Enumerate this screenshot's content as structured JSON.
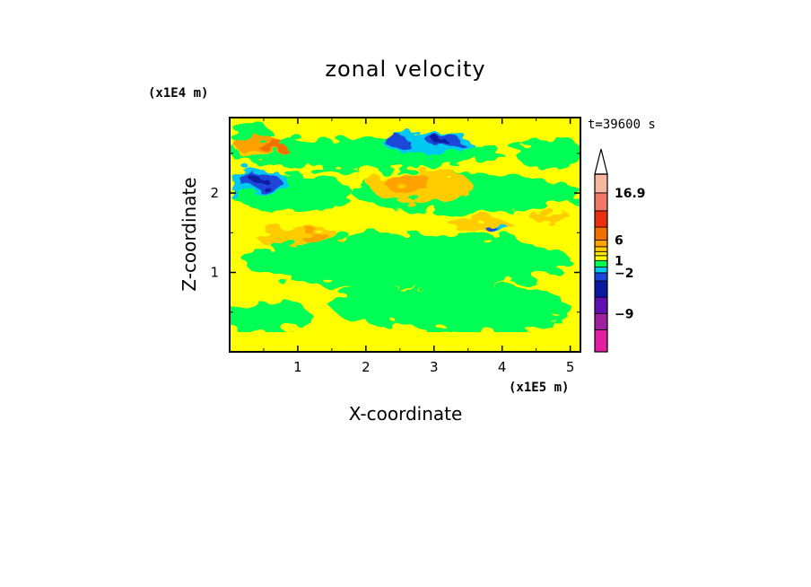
{
  "chart_data": {
    "type": "heatmap",
    "title": "zonal velocity",
    "xlabel": "X-coordinate",
    "ylabel": "Z-coordinate",
    "x_scale_label": "(x1E5 m)",
    "y_scale_label": "(x1E4 m)",
    "time_label": "t=39600 s",
    "xlim": [
      0,
      5.15
    ],
    "ylim": [
      0,
      2.95
    ],
    "x_ticks": [
      "1",
      "2",
      "3",
      "4",
      "5"
    ],
    "y_ticks": [
      "1",
      "2"
    ],
    "colorbar": {
      "labels": [
        "16.9",
        "6",
        "1",
        "−2",
        "−9"
      ],
      "levels": [
        {
          "color": "#e020a0"
        },
        {
          "color": "#a020a0"
        },
        {
          "color": "#6010b0"
        },
        {
          "color": "#0a1aa0"
        },
        {
          "color": "#1a46d8"
        },
        {
          "color": "#00c8f0"
        },
        {
          "color": "#00ff55"
        },
        {
          "color": "#ffff00"
        },
        {
          "color": "#ffe600"
        },
        {
          "color": "#ffcc00"
        },
        {
          "color": "#ffa200"
        },
        {
          "color": "#f07000"
        },
        {
          "color": "#e83010"
        },
        {
          "color": "#f07868"
        },
        {
          "color": "#f8b8a0"
        }
      ]
    },
    "field": {
      "background_color": "#ffff00",
      "regions": [
        {
          "color": "#00ff55",
          "cx": 2.6,
          "cz": 1.15,
          "rx": 2.4,
          "rz": 0.35
        },
        {
          "color": "#00ff55",
          "cx": 3.6,
          "cz": 0.55,
          "rx": 1.4,
          "rz": 0.3
        },
        {
          "color": "#00ff55",
          "cx": 0.5,
          "cz": 0.45,
          "rx": 0.7,
          "rz": 0.2
        },
        {
          "color": "#00ff55",
          "cx": 2.1,
          "cz": 0.6,
          "rx": 0.6,
          "rz": 0.25
        },
        {
          "color": "#00ff55",
          "cx": 0.9,
          "cz": 2.0,
          "rx": 0.9,
          "rz": 0.25
        },
        {
          "color": "#00ff55",
          "cx": 3.5,
          "cz": 2.0,
          "rx": 1.7,
          "rz": 0.25
        },
        {
          "color": "#00ff55",
          "cx": 2.0,
          "cz": 2.5,
          "rx": 2.0,
          "rz": 0.2
        },
        {
          "color": "#00ff55",
          "cx": 4.7,
          "cz": 2.5,
          "rx": 0.5,
          "rz": 0.2
        },
        {
          "color": "#00ff55",
          "cx": 0.3,
          "cz": 2.75,
          "rx": 0.3,
          "rz": 0.15
        },
        {
          "color": "#ffcc00",
          "cx": 0.85,
          "cz": 1.45,
          "rx": 0.45,
          "rz": 0.12
        },
        {
          "color": "#ffcc00",
          "cx": 1.3,
          "cz": 1.47,
          "rx": 0.3,
          "rz": 0.1
        },
        {
          "color": "#ffcc00",
          "cx": 0.4,
          "cz": 2.55,
          "rx": 0.3,
          "rz": 0.12
        },
        {
          "color": "#ffcc00",
          "cx": 2.8,
          "cz": 2.1,
          "rx": 0.75,
          "rz": 0.2
        },
        {
          "color": "#ffcc00",
          "cx": 3.7,
          "cz": 1.6,
          "rx": 0.45,
          "rz": 0.1
        },
        {
          "color": "#ffcc00",
          "cx": 4.7,
          "cz": 1.7,
          "rx": 0.3,
          "rz": 0.08
        },
        {
          "color": "#ffa200",
          "cx": 0.45,
          "cz": 2.6,
          "rx": 0.35,
          "rz": 0.12
        },
        {
          "color": "#ffa200",
          "cx": 2.6,
          "cz": 2.15,
          "rx": 0.35,
          "rz": 0.12
        },
        {
          "color": "#ffa200",
          "cx": 1.25,
          "cz": 1.45,
          "rx": 0.2,
          "rz": 0.08
        },
        {
          "color": "#f07000",
          "cx": 0.6,
          "cz": 2.6,
          "rx": 0.2,
          "rz": 0.07
        },
        {
          "color": "#00c8f0",
          "cx": 0.4,
          "cz": 2.15,
          "rx": 0.45,
          "rz": 0.15
        },
        {
          "color": "#00c8f0",
          "cx": 2.9,
          "cz": 2.63,
          "rx": 0.65,
          "rz": 0.13
        },
        {
          "color": "#00c8f0",
          "cx": 3.95,
          "cz": 1.55,
          "rx": 0.15,
          "rz": 0.06
        },
        {
          "color": "#00c8f0",
          "cx": 0.05,
          "cz": 2.0,
          "rx": 0.08,
          "rz": 0.05
        },
        {
          "color": "#1a46d8",
          "cx": 0.45,
          "cz": 2.15,
          "rx": 0.3,
          "rz": 0.1
        },
        {
          "color": "#1a46d8",
          "cx": 2.45,
          "cz": 2.65,
          "rx": 0.18,
          "rz": 0.07
        },
        {
          "color": "#1a46d8",
          "cx": 3.15,
          "cz": 2.65,
          "rx": 0.25,
          "rz": 0.07
        },
        {
          "color": "#1a46d8",
          "cx": 3.85,
          "cz": 1.55,
          "rx": 0.08,
          "rz": 0.04
        },
        {
          "color": "#0a1aa0",
          "cx": 0.45,
          "cz": 2.15,
          "rx": 0.12,
          "rz": 0.05
        },
        {
          "color": "#0a1aa0",
          "cx": 3.1,
          "cz": 2.65,
          "rx": 0.1,
          "rz": 0.04
        }
      ]
    }
  }
}
